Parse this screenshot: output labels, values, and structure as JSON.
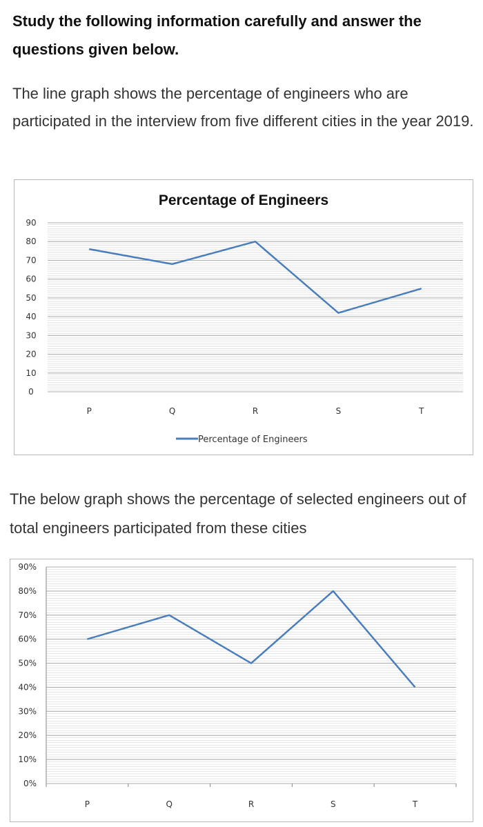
{
  "intro": {
    "heading": "Study the following information carefully and answer the questions given below.",
    "paragraph1": "The line graph shows the percentage of engineers who are participated in the interview from five different cities in the year 2019.",
    "paragraph2": "The below graph shows the percentage of selected engineers out of total engineers participated from these cities"
  },
  "colors": {
    "line": "#4a7ebb",
    "grid": "#a6a6a6",
    "axis": "#868686",
    "frame": "#b8b8b8"
  },
  "chart_data": [
    {
      "type": "line",
      "title": "Percentage of Engineers",
      "categories": [
        "P",
        "Q",
        "R",
        "S",
        "T"
      ],
      "series": [
        {
          "name": "Percentage of Engineers",
          "values": [
            76,
            68,
            80,
            42,
            55
          ]
        }
      ],
      "yticks": [
        "90",
        "80",
        "70",
        "60",
        "50",
        "40",
        "30",
        "20",
        "10",
        "0"
      ],
      "ylim": [
        0,
        90
      ],
      "grid": true,
      "legend": "bottom"
    },
    {
      "type": "line",
      "title": "",
      "categories": [
        "P",
        "Q",
        "R",
        "S",
        "T"
      ],
      "series": [
        {
          "values": [
            60,
            70,
            50,
            80,
            40
          ]
        }
      ],
      "yticks": [
        "90%",
        "80%",
        "70%",
        "60%",
        "50%",
        "40%",
        "30%",
        "20%",
        "10%",
        "0%"
      ],
      "ylim": [
        0,
        90
      ],
      "grid": true,
      "legend": "none"
    }
  ]
}
